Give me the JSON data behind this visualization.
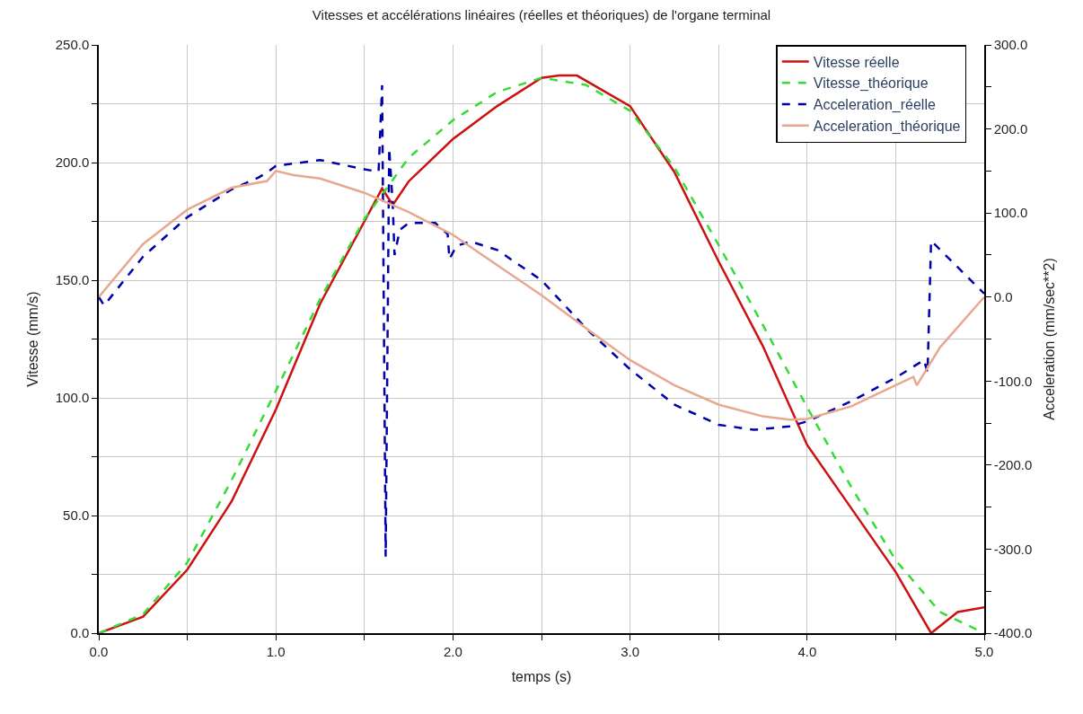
{
  "chart_data": {
    "type": "line",
    "title": "Vitesses et accélérations linéaires (réelles et théoriques) de l'organe terminal",
    "xlabel": "temps (s)",
    "ylabel": "Vitesse (mm/s)",
    "y2label": "Acceleration (mm/sec**2)",
    "xlim": [
      0,
      5
    ],
    "xticks": [
      {
        "value": 0,
        "label": "0.0"
      },
      {
        "value": 0.5,
        "label": null
      },
      {
        "value": 1,
        "label": "1.0"
      },
      {
        "value": 1.5,
        "label": null
      },
      {
        "value": 2,
        "label": "2.0"
      },
      {
        "value": 2.5,
        "label": null
      },
      {
        "value": 3,
        "label": "3.0"
      },
      {
        "value": 3.5,
        "label": null
      },
      {
        "value": 4,
        "label": "4.0"
      },
      {
        "value": 4.5,
        "label": null
      },
      {
        "value": 5,
        "label": "5.0"
      }
    ],
    "ylim": [
      0,
      250
    ],
    "yticks": [
      {
        "value": 0,
        "label": "0.0"
      },
      {
        "value": 25,
        "label": null
      },
      {
        "value": 50,
        "label": "50.0"
      },
      {
        "value": 75,
        "label": null
      },
      {
        "value": 100,
        "label": "100.0"
      },
      {
        "value": 125,
        "label": null
      },
      {
        "value": 150,
        "label": "150.0"
      },
      {
        "value": 175,
        "label": null
      },
      {
        "value": 200,
        "label": "200.0"
      },
      {
        "value": 225,
        "label": null
      },
      {
        "value": 250,
        "label": "250.0"
      }
    ],
    "y2lim": [
      -400,
      300
    ],
    "y2ticks": [
      {
        "value": -400,
        "label": "-400.0"
      },
      {
        "value": -350,
        "label": null
      },
      {
        "value": -300,
        "label": "-300.0"
      },
      {
        "value": -250,
        "label": null
      },
      {
        "value": -200,
        "label": "-200.0"
      },
      {
        "value": -150,
        "label": null
      },
      {
        "value": -100,
        "label": "-100.0"
      },
      {
        "value": -50,
        "label": null
      },
      {
        "value": 0,
        "label": "0.0"
      },
      {
        "value": 50,
        "label": null
      },
      {
        "value": 100,
        "label": "100.0"
      },
      {
        "value": 150,
        "label": null
      },
      {
        "value": 200,
        "label": "200.0"
      },
      {
        "value": 250,
        "label": null
      },
      {
        "value": 300,
        "label": "300.0"
      }
    ],
    "grid": true,
    "legend": "top right",
    "marker": "none",
    "series": [
      {
        "name": "Vitesse réelle",
        "color": "#cc1111",
        "line_style": "solid",
        "x": [
          0,
          0.25,
          0.5,
          0.75,
          1.0,
          1.25,
          1.5,
          1.6,
          1.66,
          1.75,
          2.0,
          2.25,
          2.5,
          2.6,
          2.7,
          3.0,
          3.25,
          3.5,
          3.75,
          4.0,
          4.25,
          4.5,
          4.7,
          4.85,
          5.0
        ],
        "values": [
          0,
          7,
          27,
          56,
          95,
          140,
          175,
          189,
          182,
          192,
          210,
          224,
          236,
          237,
          237,
          224,
          196,
          158,
          122,
          80,
          53,
          26,
          0,
          9,
          11
        ]
      },
      {
        "name": "Vitesse_théorique",
        "color": "#33dd33",
        "line_style": "dashed",
        "x": [
          0,
          0.25,
          0.5,
          0.75,
          1.0,
          1.25,
          1.5,
          1.75,
          2.0,
          2.25,
          2.5,
          2.75,
          3.0,
          3.25,
          3.5,
          3.75,
          4.0,
          4.25,
          4.5,
          4.75,
          5.0
        ],
        "values": [
          0,
          8,
          30,
          65,
          103,
          142,
          176,
          202,
          218,
          230,
          236,
          233,
          222,
          198,
          165,
          131,
          96,
          62,
          31,
          9,
          0
        ]
      },
      {
        "name": "Acceleration_réelle",
        "color": "#0000aa",
        "line_style": "dashed",
        "axis": "y2",
        "x": [
          0,
          0.03,
          0.25,
          0.5,
          0.75,
          0.9,
          0.95,
          1.0,
          1.25,
          1.5,
          1.58,
          1.6,
          1.62,
          1.64,
          1.66,
          1.67,
          1.7,
          1.75,
          1.9,
          1.97,
          1.98,
          2.02,
          2.1,
          2.25,
          2.5,
          2.75,
          3.0,
          3.25,
          3.5,
          3.7,
          3.9,
          4.0,
          4.25,
          4.5,
          4.66,
          4.68,
          4.7,
          5.0
        ],
        "values": [
          0,
          -10,
          48,
          95,
          128,
          142,
          148,
          156,
          163,
          152,
          149,
          252,
          -309,
          177,
          110,
          50,
          80,
          88,
          88,
          75,
          45,
          61,
          66,
          56,
          20,
          -37,
          -86,
          -128,
          -152,
          -158,
          -154,
          -148,
          -124,
          -96,
          -75,
          -90,
          67,
          4
        ]
      },
      {
        "name": "Acceleration_théorique",
        "color": "#e8a890",
        "line_style": "solid",
        "axis": "y2",
        "x": [
          0,
          0.25,
          0.5,
          0.75,
          0.95,
          1.0,
          1.1,
          1.25,
          1.5,
          1.75,
          2.0,
          2.25,
          2.5,
          2.75,
          3.0,
          3.25,
          3.5,
          3.75,
          3.9,
          4.0,
          4.25,
          4.5,
          4.6,
          4.62,
          4.75,
          5.0
        ],
        "values": [
          0,
          63,
          104,
          130,
          138,
          150,
          145,
          141,
          124,
          101,
          74,
          38,
          2,
          -37,
          -75,
          -105,
          -128,
          -142,
          -146,
          -145,
          -130,
          -105,
          -95,
          -105,
          -60,
          0
        ]
      }
    ]
  }
}
